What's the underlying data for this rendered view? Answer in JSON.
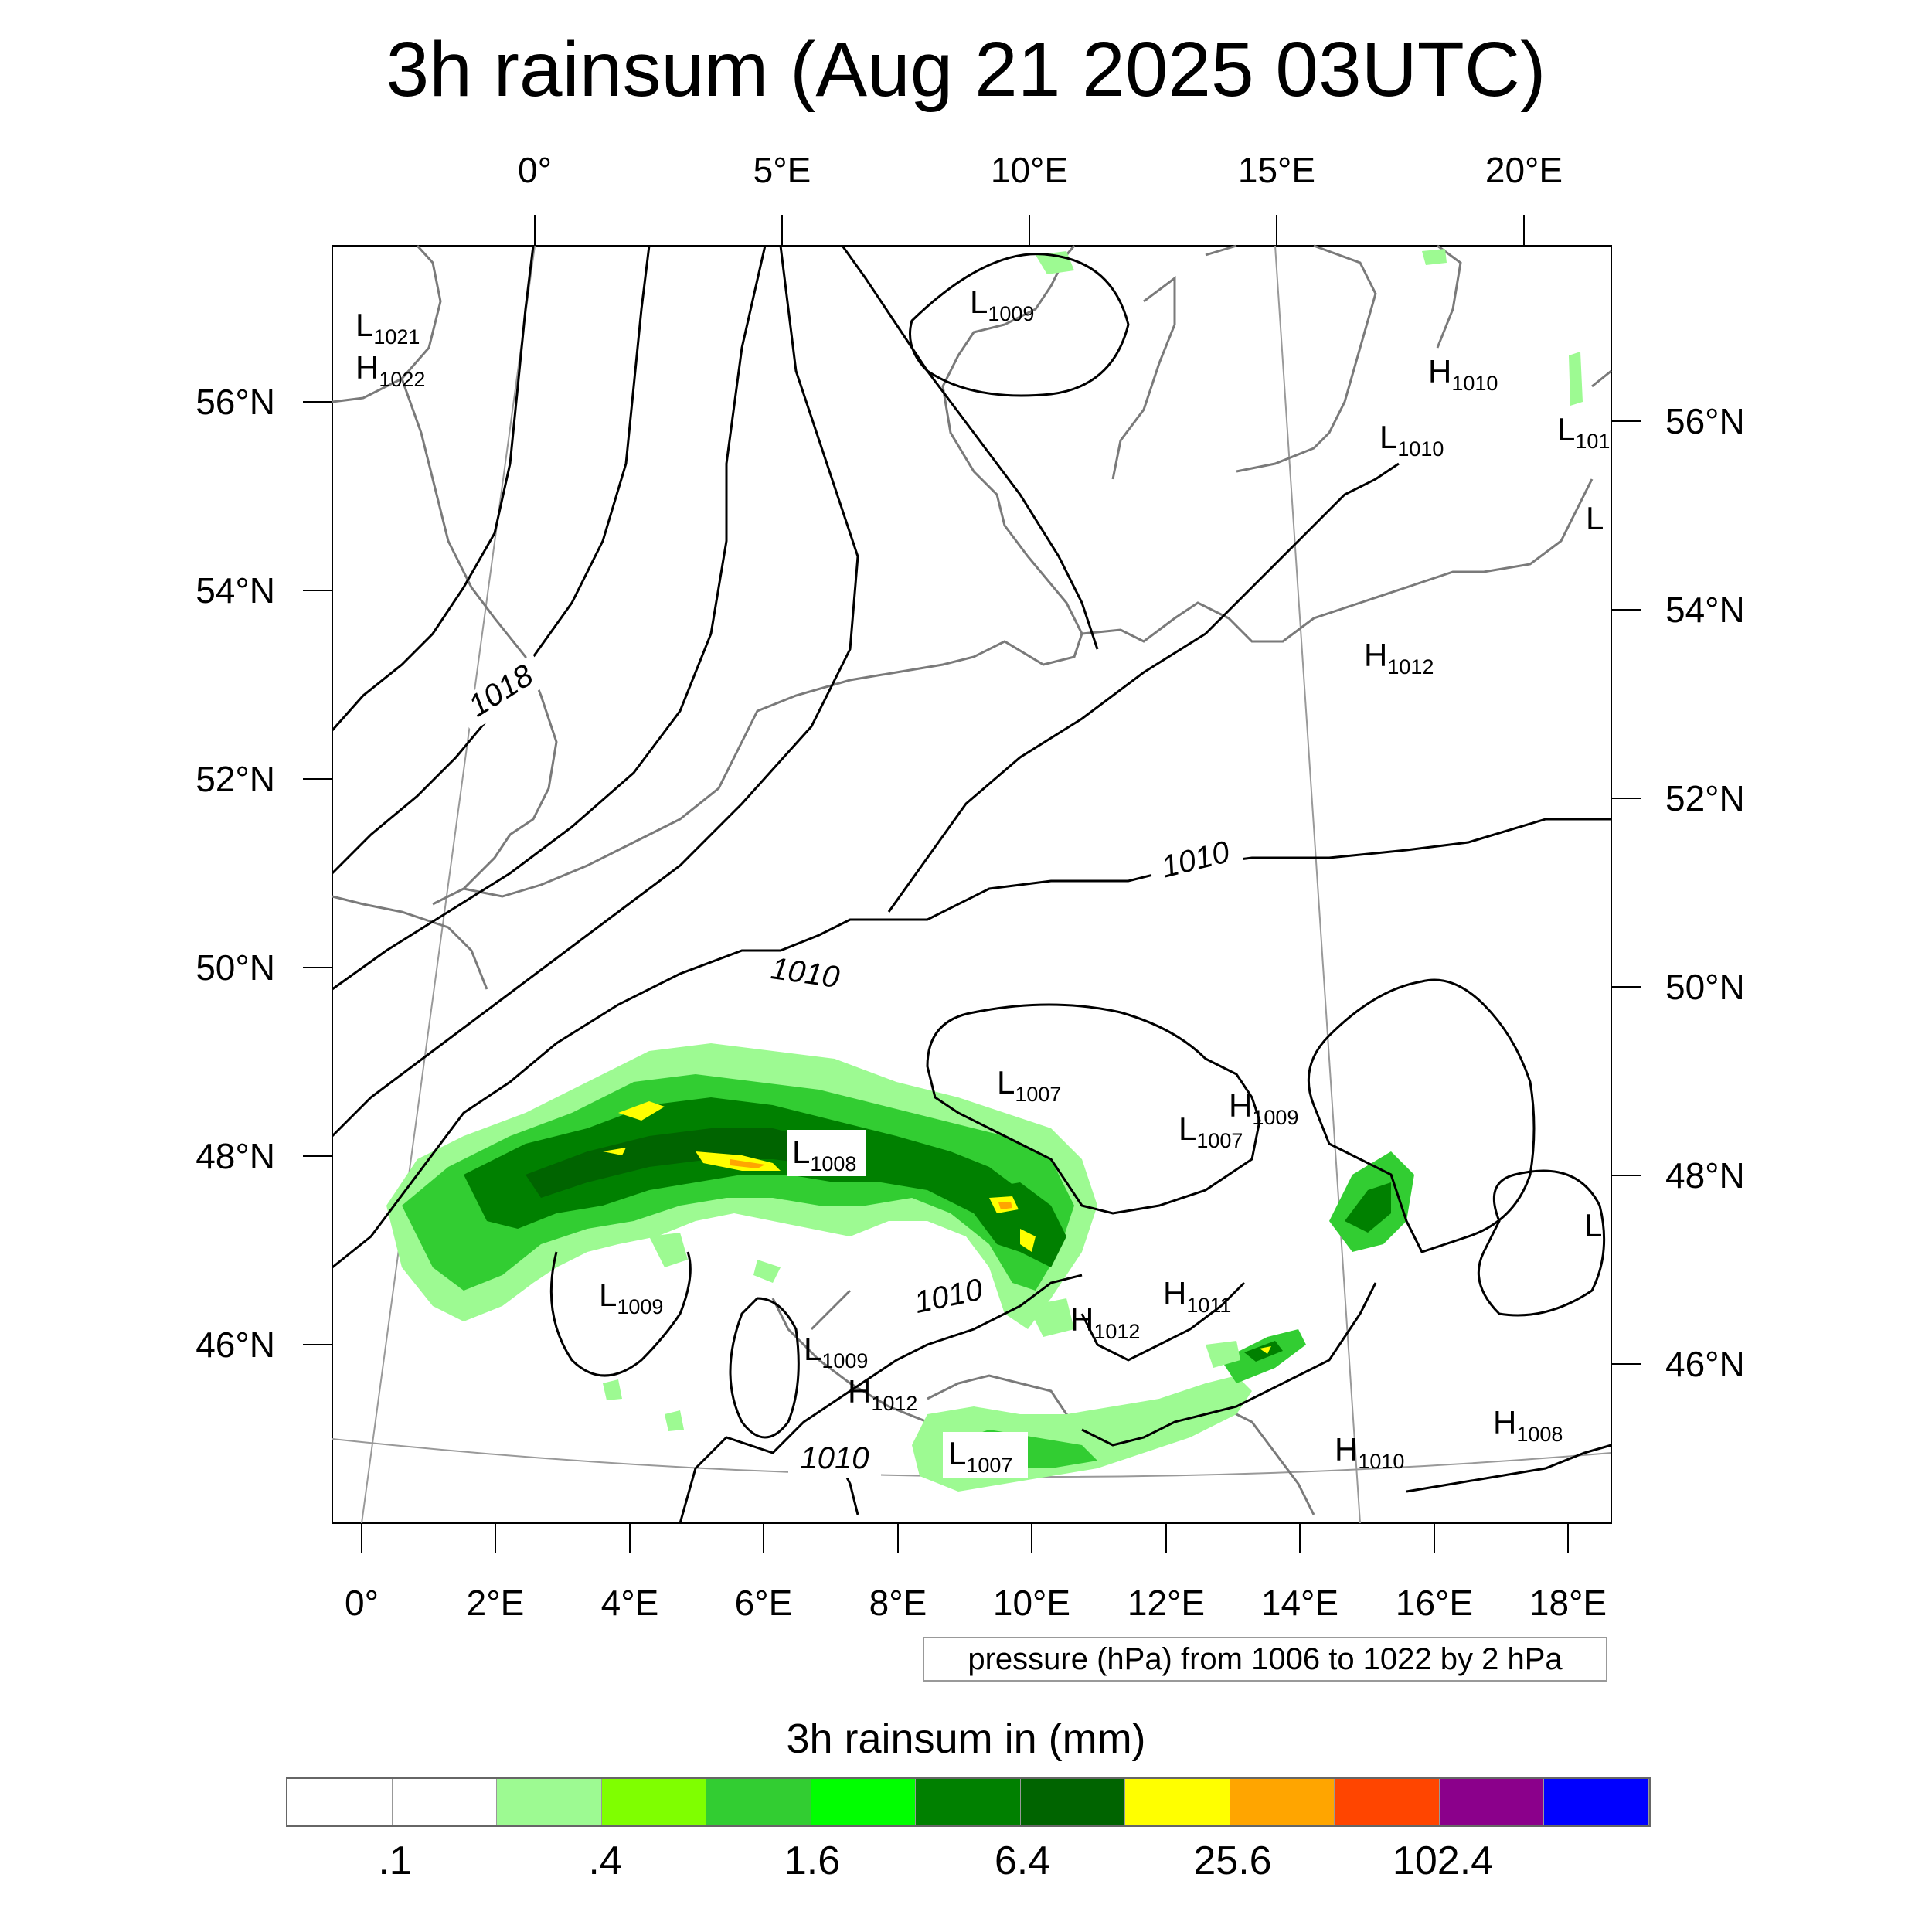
{
  "title": "3h rainsum (Aug 21 2025 03UTC)",
  "top_lon_labels": [
    "0°",
    "5°E",
    "10°E",
    "15°E",
    "20°E"
  ],
  "bottom_lon_labels": [
    "0°",
    "2°E",
    "4°E",
    "6°E",
    "8°E",
    "10°E",
    "12°E",
    "14°E",
    "16°E",
    "18°E"
  ],
  "left_lat_labels": [
    "56°N",
    "54°N",
    "52°N",
    "50°N",
    "48°N",
    "46°N"
  ],
  "right_lat_labels": [
    "56°N",
    "54°N",
    "52°N",
    "50°N",
    "48°N",
    "46°N"
  ],
  "pressure_info": "pressure (hPa) from 1006 to 1022 by 2 hPa",
  "legend": {
    "title": "3h rainsum in (mm)",
    "labels": [
      ".1",
      ".4",
      "1.6",
      "6.4",
      "25.6",
      "102.4"
    ],
    "colors": [
      "#ffffff",
      "#ffffff",
      "#9dfa92",
      "#7fff00",
      "#32cd32",
      "#00ff00",
      "#008000",
      "#006400",
      "#ffff00",
      "#ffa500",
      "#ff4500",
      "#8b008b",
      "#0000ff"
    ]
  },
  "isobar_labels": [
    "1018",
    "1010",
    "1010",
    "1010",
    "1010"
  ],
  "pressure_centers": [
    {
      "type": "L",
      "value": "1021"
    },
    {
      "type": "H",
      "value": "1022"
    },
    {
      "type": "L",
      "value": "1009"
    },
    {
      "type": "H",
      "value": "1010"
    },
    {
      "type": "L",
      "value": "1010"
    },
    {
      "type": "L",
      "value": "101"
    },
    {
      "type": "L",
      "value": ""
    },
    {
      "type": "H",
      "value": "1012"
    },
    {
      "type": "L",
      "value": "1007"
    },
    {
      "type": "H",
      "value": "1009"
    },
    {
      "type": "L",
      "value": "1007"
    },
    {
      "type": "L",
      "value": "1008"
    },
    {
      "type": "L",
      "value": "1009"
    },
    {
      "type": "H",
      "value": "1011"
    },
    {
      "type": "H",
      "value": "1012"
    },
    {
      "type": "L",
      "value": "1009"
    },
    {
      "type": "H",
      "value": "1012"
    },
    {
      "type": "L",
      "value": "1007"
    },
    {
      "type": "H",
      "value": "1010"
    },
    {
      "type": "H",
      "value": "1008"
    },
    {
      "type": "L",
      "value": ""
    }
  ]
}
